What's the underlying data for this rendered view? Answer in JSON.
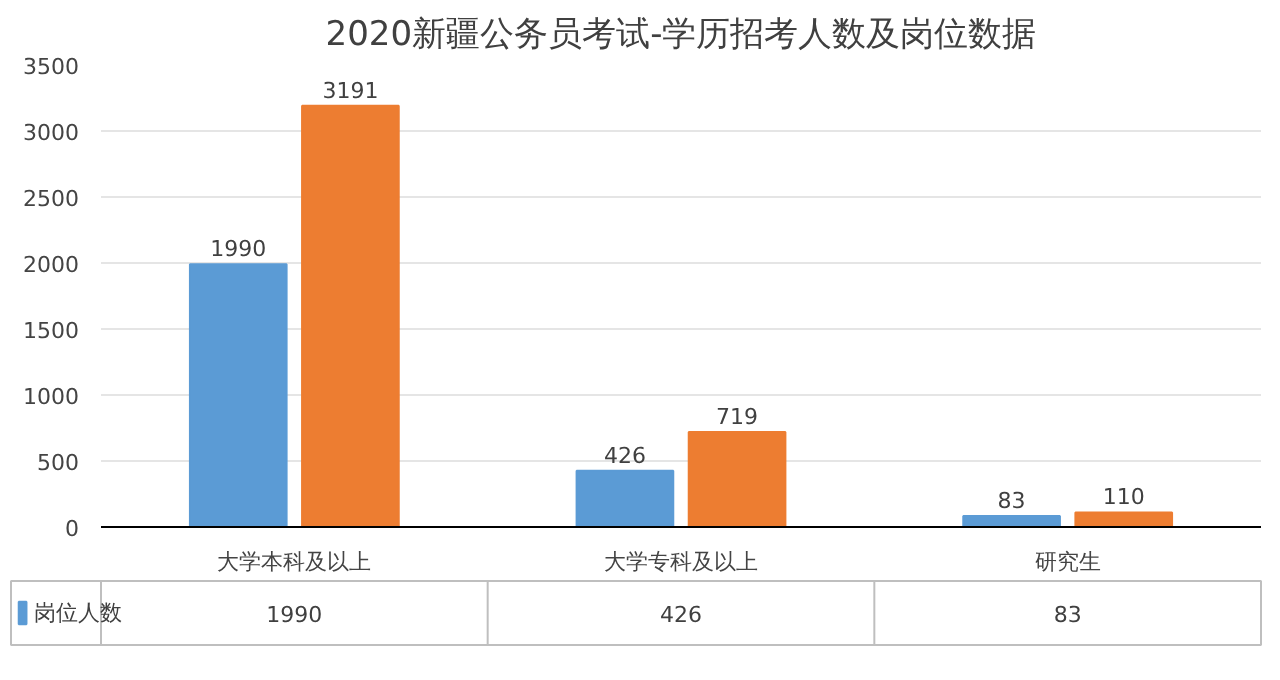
{
  "chart_data": {
    "type": "bar",
    "title": "2020新疆公务员考试-学历招考人数及岗位数据",
    "categories": [
      "大学本科及以上",
      "大学专科及以上",
      "研究生"
    ],
    "series": [
      {
        "name": "岗位人数",
        "color": "#5b9bd5",
        "values": [
          1990,
          426,
          83
        ],
        "value_labels": [
          "1990",
          "426",
          "83"
        ]
      },
      {
        "color": "#ed7d31",
        "values": [
          3191,
          719,
          110
        ]
      }
    ],
    "ylim": [
      0,
      3500
    ],
    "yticks": [
      0,
      500,
      1000,
      1500,
      2000,
      2500,
      3000,
      3500
    ],
    "annotations": [
      "1990",
      "426",
      "83"
    ],
    "grid": "y",
    "data_labels": true,
    "legend": "bottom"
  }
}
